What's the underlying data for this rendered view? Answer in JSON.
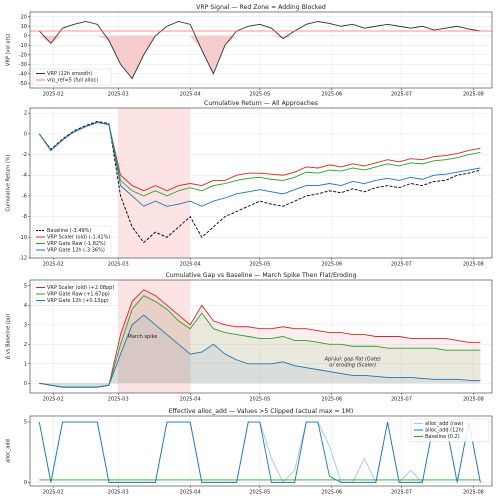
{
  "chart_data": [
    {
      "type": "line",
      "title": "VRP Signal — Red Zone = Adding Blocked",
      "ylabel": "VRP (vol pts)",
      "x": [
        25,
        30,
        35,
        40,
        45,
        50,
        55,
        60,
        65,
        70,
        75,
        80,
        85,
        90,
        95,
        100,
        105,
        110,
        115,
        120,
        125,
        130,
        135,
        140,
        145,
        150,
        155,
        160,
        165,
        170,
        175,
        180,
        185,
        190,
        195,
        200,
        205,
        210,
        215
      ],
      "xlim": [
        21,
        220
      ],
      "xticks": [
        {
          "value": 31,
          "label": "2025-02"
        },
        {
          "value": 59,
          "label": "2025-03"
        },
        {
          "value": 90,
          "label": "2025-04"
        },
        {
          "value": 120,
          "label": "2025-05"
        },
        {
          "value": 151,
          "label": "2025-06"
        },
        {
          "value": 181,
          "label": "2025-07"
        },
        {
          "value": 212,
          "label": "2025-08"
        }
      ],
      "ylim": [
        -55,
        25
      ],
      "yticks": [
        -50,
        -40,
        -30,
        -20,
        -10,
        0,
        10,
        20
      ],
      "grid": true,
      "legend": "lower left",
      "fill_negative": "#f4b6b6",
      "series": [
        {
          "name": "VRP (12h smooth)",
          "color": "#333333",
          "values": [
            5,
            -8,
            8,
            12,
            15,
            12,
            -5,
            -30,
            -45,
            -20,
            0,
            10,
            15,
            12,
            -15,
            -40,
            -10,
            5,
            10,
            12,
            8,
            -3,
            5,
            12,
            15,
            13,
            10,
            12,
            8,
            10,
            12,
            10,
            8,
            10,
            6,
            8,
            10,
            7,
            5
          ]
        }
      ],
      "hline": {
        "name": "vrp_ref=5 (full alloc)",
        "value": 5,
        "color": "#ff6b6b"
      }
    },
    {
      "type": "line",
      "title": "Cumulative Return — All Approaches",
      "ylabel": "Cumulative Return (%)",
      "x": [
        25,
        30,
        35,
        40,
        45,
        50,
        55,
        60,
        65,
        70,
        75,
        80,
        85,
        90,
        95,
        100,
        105,
        110,
        115,
        120,
        125,
        130,
        135,
        140,
        145,
        150,
        155,
        160,
        165,
        170,
        175,
        180,
        185,
        190,
        195,
        200,
        205,
        210,
        215
      ],
      "xlim": [
        21,
        220
      ],
      "xticks": [
        {
          "value": 31,
          "label": "2025-02"
        },
        {
          "value": 59,
          "label": "2025-03"
        },
        {
          "value": 90,
          "label": "2025-04"
        },
        {
          "value": 120,
          "label": "2025-05"
        },
        {
          "value": 151,
          "label": "2025-06"
        },
        {
          "value": 181,
          "label": "2025-07"
        },
        {
          "value": 212,
          "label": "2025-08"
        }
      ],
      "ylim": [
        -12,
        2.5
      ],
      "yticks": [
        -12,
        -10,
        -8,
        -6,
        -4,
        -2,
        0,
        2
      ],
      "grid": true,
      "legend": "lower left",
      "shade": [
        59,
        90
      ],
      "series": [
        {
          "name": "Baseline (-3.49%)",
          "color": "#000000",
          "style": "dashed",
          "values": [
            0,
            -1.5,
            -0.5,
            0.3,
            0.8,
            1.2,
            1.0,
            -6,
            -9,
            -10.5,
            -9.5,
            -10,
            -9,
            -8,
            -10,
            -9,
            -8,
            -7.5,
            -7,
            -6.5,
            -6.8,
            -7,
            -6.5,
            -6,
            -5.8,
            -5.5,
            -5.7,
            -5.3,
            -5.6,
            -5.2,
            -5,
            -5.2,
            -4.8,
            -5,
            -4.6,
            -4.5,
            -4,
            -3.8,
            -3.5
          ]
        },
        {
          "name": "VRP Scaler (old) (-1.41%)",
          "color": "#d62728",
          "values": [
            0,
            -1.6,
            -0.6,
            0.2,
            0.7,
            1.1,
            0.9,
            -4,
            -5,
            -5.5,
            -5,
            -5.5,
            -5,
            -4.8,
            -5,
            -4.5,
            -4.5,
            -4,
            -3.8,
            -3.8,
            -3.9,
            -4,
            -3.7,
            -3.2,
            -3.3,
            -3,
            -3.2,
            -2.9,
            -3.1,
            -2.8,
            -2.5,
            -2.7,
            -2.4,
            -2.5,
            -2.2,
            -2.1,
            -1.9,
            -1.6,
            -1.4
          ]
        },
        {
          "name": "VRP Gate Raw (-1.82%)",
          "color": "#2ca02c",
          "values": [
            0,
            -1.6,
            -0.6,
            0.2,
            0.7,
            1.1,
            0.9,
            -4.5,
            -5.5,
            -6,
            -5.5,
            -6,
            -5.5,
            -5.2,
            -5.5,
            -5,
            -4.8,
            -4.5,
            -4.3,
            -4.2,
            -4.4,
            -4.5,
            -4.2,
            -3.7,
            -3.8,
            -3.5,
            -3.6,
            -3.3,
            -3.5,
            -3.2,
            -2.9,
            -3.1,
            -2.8,
            -2.9,
            -2.6,
            -2.5,
            -2.3,
            -2,
            -1.8
          ]
        },
        {
          "name": "VRP Gate 12h (-3.36%)",
          "color": "#1f77b4",
          "values": [
            0,
            -1.6,
            -0.6,
            0.2,
            0.7,
            1.1,
            0.9,
            -5,
            -6,
            -7,
            -6.5,
            -7,
            -6.8,
            -6.5,
            -7,
            -6.5,
            -6.2,
            -5.8,
            -5.6,
            -5.4,
            -5.6,
            -5.8,
            -5.4,
            -5,
            -5,
            -4.8,
            -5,
            -4.6,
            -4.8,
            -4.5,
            -4.3,
            -4.5,
            -4.2,
            -4.4,
            -4,
            -3.9,
            -3.7,
            -3.5,
            -3.3
          ]
        }
      ]
    },
    {
      "type": "line",
      "title": "Cumulative Gap vs Baseline — March Spike Then Flat/Eroding",
      "ylabel": "Δ vs Baseline (pp)",
      "x": [
        25,
        30,
        35,
        40,
        45,
        50,
        55,
        60,
        65,
        70,
        75,
        80,
        85,
        90,
        95,
        100,
        105,
        110,
        115,
        120,
        125,
        130,
        135,
        140,
        145,
        150,
        155,
        160,
        165,
        170,
        175,
        180,
        185,
        190,
        195,
        200,
        205,
        210,
        215
      ],
      "xlim": [
        21,
        220
      ],
      "xticks": [
        {
          "value": 31,
          "label": "2025-02"
        },
        {
          "value": 59,
          "label": "2025-03"
        },
        {
          "value": 90,
          "label": "2025-04"
        },
        {
          "value": 120,
          "label": "2025-05"
        },
        {
          "value": 151,
          "label": "2025-06"
        },
        {
          "value": 181,
          "label": "2025-07"
        },
        {
          "value": 212,
          "label": "2025-08"
        }
      ],
      "ylim": [
        -0.5,
        5.3
      ],
      "yticks": [
        0,
        1,
        2,
        3,
        4,
        5
      ],
      "grid": true,
      "legend": "upper left",
      "shade": [
        59,
        90
      ],
      "fill": true,
      "annotations": [
        "March spike",
        "Apr-Jul: gap flat (Gate)",
        "or eroding (Scaler)"
      ],
      "series": [
        {
          "name": "VRP Scaler (old) (+2.08pp)",
          "color": "#d62728",
          "values": [
            0,
            -0.1,
            -0.2,
            -0.2,
            -0.2,
            -0.2,
            -0.1,
            2.5,
            4.2,
            4.8,
            4.5,
            4,
            3.5,
            3,
            4,
            3.2,
            3,
            2.9,
            2.9,
            2.8,
            2.8,
            2.9,
            2.8,
            2.8,
            2.7,
            2.6,
            2.6,
            2.5,
            2.5,
            2.4,
            2.4,
            2.4,
            2.3,
            2.3,
            2.3,
            2.3,
            2.2,
            2.1,
            2.1
          ]
        },
        {
          "name": "VRP Gate Raw (+1.67pp)",
          "color": "#2ca02c",
          "values": [
            0,
            -0.1,
            -0.2,
            -0.2,
            -0.2,
            -0.2,
            -0.1,
            2,
            3.8,
            4.5,
            4.2,
            3.8,
            3.2,
            2.8,
            3.6,
            2.8,
            2.6,
            2.5,
            2.4,
            2.3,
            2.3,
            2.4,
            2.2,
            2.2,
            2.1,
            2,
            2,
            1.9,
            1.9,
            1.9,
            1.8,
            1.8,
            1.8,
            1.8,
            1.8,
            1.7,
            1.7,
            1.7,
            1.7
          ]
        },
        {
          "name": "VRP Gate 12h (+0.13pp)",
          "color": "#1f77b4",
          "values": [
            0,
            -0.1,
            -0.2,
            -0.2,
            -0.2,
            -0.2,
            -0.1,
            1.5,
            3,
            3.5,
            3,
            2.5,
            2,
            1.5,
            1.6,
            2,
            1.5,
            1.2,
            1,
            1,
            1,
            1.1,
            0.9,
            0.8,
            0.7,
            0.6,
            0.5,
            0.4,
            0.4,
            0.35,
            0.3,
            0.3,
            0.3,
            0.25,
            0.2,
            0.2,
            0.2,
            0.15,
            0.13
          ]
        }
      ]
    },
    {
      "type": "line",
      "title": "Effective alloc_add — Values >5 Clipped (actual max = 1M)",
      "ylabel": "alloc_add",
      "x": [
        25,
        30,
        35,
        40,
        45,
        50,
        55,
        60,
        65,
        70,
        75,
        80,
        85,
        90,
        95,
        100,
        105,
        110,
        115,
        120,
        125,
        130,
        135,
        140,
        145,
        150,
        155,
        160,
        165,
        170,
        175,
        180,
        185,
        190,
        195,
        200,
        205,
        210,
        215
      ],
      "xlim": [
        21,
        220
      ],
      "xticks": [
        {
          "value": 31,
          "label": "2025-02"
        },
        {
          "value": 59,
          "label": "2025-03"
        },
        {
          "value": 90,
          "label": "2025-04"
        },
        {
          "value": 120,
          "label": "2025-05"
        },
        {
          "value": 151,
          "label": "2025-06"
        },
        {
          "value": 181,
          "label": "2025-07"
        },
        {
          "value": 212,
          "label": "2025-08"
        }
      ],
      "ylim": [
        -0.3,
        5.5
      ],
      "yticks": [
        0,
        5
      ],
      "grid": true,
      "legend": "upper right",
      "series": [
        {
          "name": "alloc_add (raw)",
          "color": "#9ecae1",
          "values": [
            5,
            0,
            5,
            5,
            5,
            5,
            0,
            0,
            0,
            0,
            0,
            5,
            5,
            5,
            0,
            0,
            0,
            0,
            5,
            5,
            2,
            0,
            1,
            5,
            5,
            3,
            0,
            0,
            2,
            0,
            5,
            0,
            1,
            0,
            5,
            5,
            0,
            5,
            0
          ]
        },
        {
          "name": "alloc_add (12h)",
          "color": "#1f77b4",
          "values": [
            5,
            0,
            5,
            5,
            5,
            5,
            0,
            0,
            0,
            0,
            0,
            5,
            5,
            5,
            0,
            0,
            0,
            0,
            5,
            5,
            0,
            0,
            0,
            5,
            5,
            0.5,
            0,
            0,
            0,
            0,
            5,
            0,
            0,
            0,
            5,
            5,
            0,
            5,
            0
          ]
        },
        {
          "name": "Baseline (0.2)",
          "color": "#2ca02c",
          "values": [
            0.2,
            0.2,
            0.2,
            0.2,
            0.2,
            0.2,
            0.2,
            0.2,
            0.2,
            0.2,
            0.2,
            0.2,
            0.2,
            0.2,
            0.2,
            0.2,
            0.2,
            0.2,
            0.2,
            0.2,
            0.2,
            0.2,
            0.2,
            0.2,
            0.2,
            0.2,
            0.2,
            0.2,
            0.2,
            0.2,
            0.2,
            0.2,
            0.2,
            0.2,
            0.2,
            0.2,
            0.2,
            0.2,
            0.2
          ]
        }
      ]
    }
  ]
}
